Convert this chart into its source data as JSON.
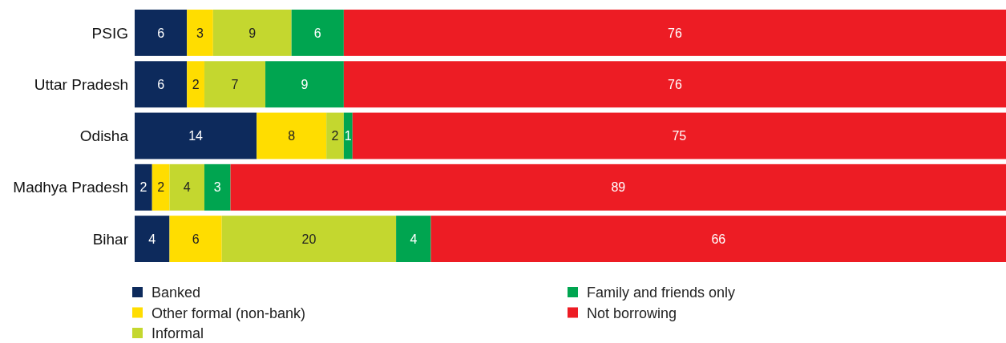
{
  "chart_data": {
    "type": "bar",
    "orientation": "horizontal",
    "stacked": true,
    "data_labels": true,
    "legend": "bottom",
    "categories": [
      "PSIG",
      "Uttar Pradesh",
      "Odisha",
      "Madhya Pradesh",
      "Bihar"
    ],
    "series": [
      {
        "name": "Banked",
        "color": "#0d2a5c",
        "values": [
          6,
          6,
          14,
          2,
          4
        ]
      },
      {
        "name": "Other formal (non-bank)",
        "color": "#ffdd00",
        "values": [
          3,
          2,
          8,
          2,
          6
        ]
      },
      {
        "name": "Informal",
        "color": "#c4d72f",
        "values": [
          9,
          7,
          2,
          4,
          20
        ]
      },
      {
        "name": "Family and friends only",
        "color": "#00a550",
        "values": [
          6,
          9,
          1,
          3,
          4
        ]
      },
      {
        "name": "Not borrowing",
        "color": "#ed1c24",
        "values": [
          76,
          76,
          75,
          89,
          66
        ]
      }
    ]
  }
}
